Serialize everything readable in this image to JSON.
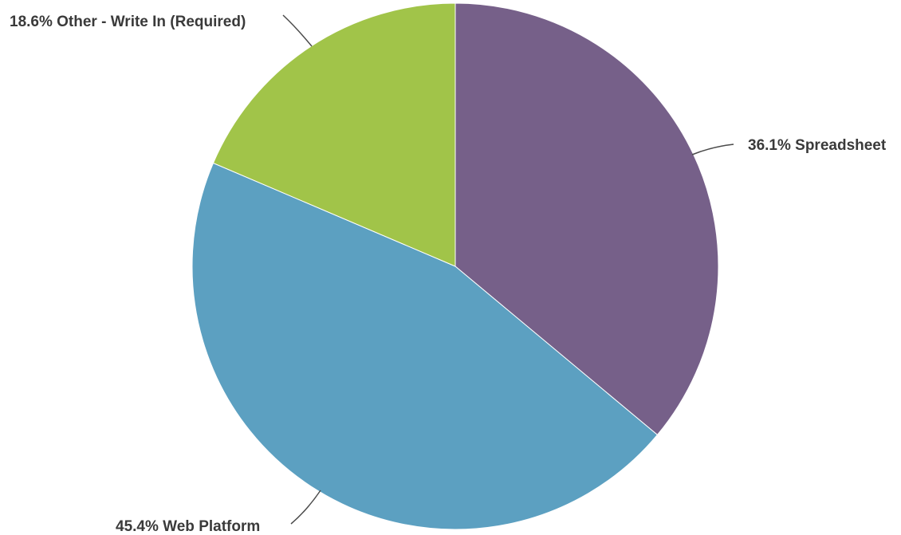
{
  "chart_data": {
    "type": "pie",
    "title": "",
    "legend": "none",
    "slices": [
      {
        "label": "Spreadsheet",
        "value": 36.1,
        "display": "36.1% Spreadsheet",
        "color": "#766089"
      },
      {
        "label": "Web Platform",
        "value": 45.4,
        "display": "45.4% Web Platform",
        "color": "#5ca0c1"
      },
      {
        "label": "Other - Write In (Required)",
        "value": 18.6,
        "display": "18.6% Other - Write In (Required)",
        "color": "#a1c449"
      }
    ]
  }
}
